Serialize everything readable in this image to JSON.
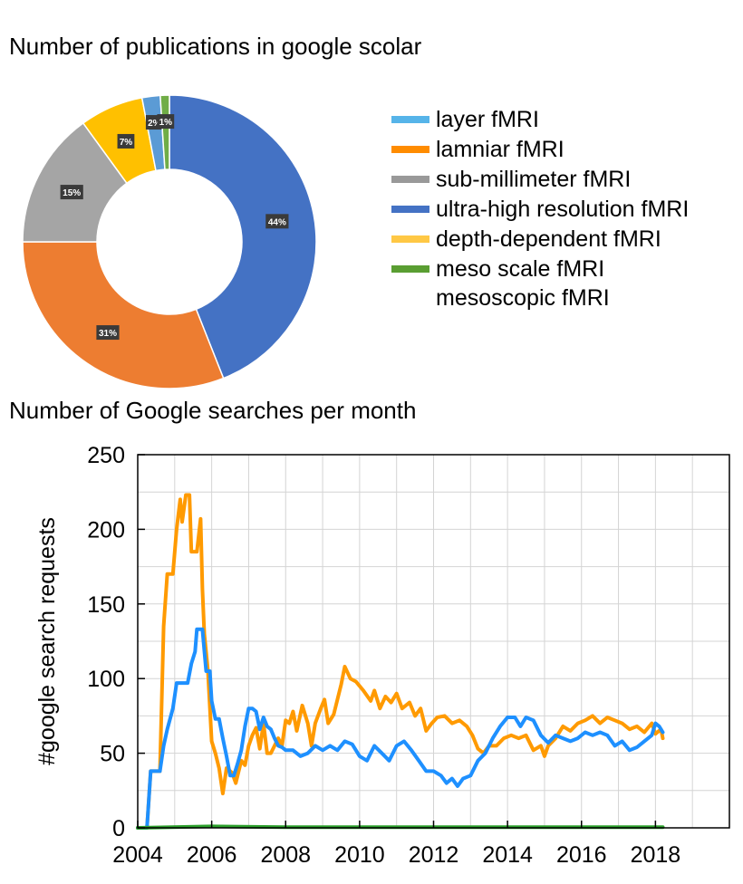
{
  "chart_data": [
    {
      "type": "pie",
      "title": "Number of publications in google scolar",
      "donut": true,
      "slices": [
        {
          "label": "ultra-high resolution fMRI",
          "value": 44,
          "text": "44%",
          "color": "#4472c4"
        },
        {
          "label": "lamniar fMRI",
          "value": 31,
          "text": "31%",
          "color": "#ed7d31"
        },
        {
          "label": "sub-millimeter fMRI",
          "value": 15,
          "text": "15%",
          "color": "#a5a5a5"
        },
        {
          "label": "depth-dependent fMRI",
          "value": 7,
          "text": "7%",
          "color": "#ffc000"
        },
        {
          "label": "layer fMRI",
          "value": 2,
          "text": "2%",
          "color": "#5b9bd5"
        },
        {
          "label": "meso scale fMRI",
          "value": 1,
          "text": "1%",
          "color": "#70ad47"
        }
      ],
      "legend": {
        "placement": "right",
        "entries": [
          {
            "label": "layer fMRI",
            "color": "#56b4e9"
          },
          {
            "label": "lamniar fMRI",
            "color": "#ff8c00"
          },
          {
            "label": "sub-millimeter fMRI",
            "color": "#999999"
          },
          {
            "label": "ultra-high resolution fMRI",
            "color": "#4472c4"
          },
          {
            "label": "depth-dependent fMRI",
            "color": "#ffc845"
          },
          {
            "label": "meso scale fMRI\nmesoscopic fMRI",
            "color": "#5a9e32"
          }
        ]
      }
    },
    {
      "type": "line",
      "title": "Number of Google searches per month",
      "xlabel": "",
      "ylabel": "#google search requests",
      "xlim": [
        2004,
        2020
      ],
      "ylim": [
        0,
        250
      ],
      "xticks": [
        2004,
        2006,
        2008,
        2010,
        2012,
        2014,
        2016,
        2018
      ],
      "yticks": [
        0,
        50,
        100,
        150,
        200,
        250
      ],
      "grid": true,
      "series": [
        {
          "color": "#ff9a00",
          "values": [
            [
              2004.0,
              0
            ],
            [
              2004.25,
              0
            ],
            [
              2004.35,
              38
            ],
            [
              2004.5,
              38
            ],
            [
              2004.6,
              38
            ],
            [
              2004.7,
              135
            ],
            [
              2004.8,
              170
            ],
            [
              2004.95,
              170
            ],
            [
              2005.05,
              200
            ],
            [
              2005.15,
              220
            ],
            [
              2005.2,
              205
            ],
            [
              2005.3,
              223
            ],
            [
              2005.4,
              223
            ],
            [
              2005.45,
              185
            ],
            [
              2005.6,
              185
            ],
            [
              2005.7,
              207
            ],
            [
              2005.75,
              160
            ],
            [
              2005.8,
              130
            ],
            [
              2005.9,
              105
            ],
            [
              2006.0,
              58
            ],
            [
              2006.1,
              50
            ],
            [
              2006.2,
              40
            ],
            [
              2006.3,
              23
            ],
            [
              2006.4,
              40
            ],
            [
              2006.55,
              37
            ],
            [
              2006.65,
              30
            ],
            [
              2006.8,
              45
            ],
            [
              2006.9,
              42
            ],
            [
              2007.0,
              55
            ],
            [
              2007.1,
              62
            ],
            [
              2007.2,
              67
            ],
            [
              2007.3,
              53
            ],
            [
              2007.4,
              70
            ],
            [
              2007.5,
              50
            ],
            [
              2007.6,
              50
            ],
            [
              2007.7,
              55
            ],
            [
              2007.8,
              60
            ],
            [
              2007.9,
              55
            ],
            [
              2008.0,
              72
            ],
            [
              2008.1,
              70
            ],
            [
              2008.2,
              78
            ],
            [
              2008.3,
              65
            ],
            [
              2008.45,
              82
            ],
            [
              2008.6,
              70
            ],
            [
              2008.7,
              55
            ],
            [
              2008.8,
              70
            ],
            [
              2008.95,
              80
            ],
            [
              2009.05,
              86
            ],
            [
              2009.15,
              70
            ],
            [
              2009.3,
              76
            ],
            [
              2009.5,
              96
            ],
            [
              2009.6,
              108
            ],
            [
              2009.75,
              100
            ],
            [
              2009.9,
              98
            ],
            [
              2010.1,
              92
            ],
            [
              2010.3,
              85
            ],
            [
              2010.4,
              92
            ],
            [
              2010.55,
              80
            ],
            [
              2010.7,
              88
            ],
            [
              2010.85,
              84
            ],
            [
              2011.0,
              90
            ],
            [
              2011.15,
              80
            ],
            [
              2011.35,
              84
            ],
            [
              2011.5,
              75
            ],
            [
              2011.65,
              80
            ],
            [
              2011.8,
              65
            ],
            [
              2011.95,
              70
            ],
            [
              2012.1,
              74
            ],
            [
              2012.3,
              75
            ],
            [
              2012.5,
              70
            ],
            [
              2012.7,
              72
            ],
            [
              2012.9,
              68
            ],
            [
              2013.05,
              62
            ],
            [
              2013.2,
              53
            ],
            [
              2013.35,
              50
            ],
            [
              2013.5,
              55
            ],
            [
              2013.7,
              55
            ],
            [
              2013.9,
              60
            ],
            [
              2014.1,
              62
            ],
            [
              2014.3,
              60
            ],
            [
              2014.5,
              62
            ],
            [
              2014.7,
              52
            ],
            [
              2014.9,
              55
            ],
            [
              2015.0,
              48
            ],
            [
              2015.1,
              55
            ],
            [
              2015.3,
              60
            ],
            [
              2015.5,
              68
            ],
            [
              2015.7,
              65
            ],
            [
              2015.9,
              70
            ],
            [
              2016.1,
              72
            ],
            [
              2016.3,
              75
            ],
            [
              2016.5,
              70
            ],
            [
              2016.7,
              74
            ],
            [
              2016.9,
              72
            ],
            [
              2017.1,
              70
            ],
            [
              2017.3,
              66
            ],
            [
              2017.5,
              68
            ],
            [
              2017.7,
              64
            ],
            [
              2017.9,
              70
            ],
            [
              2018.0,
              63
            ],
            [
              2018.15,
              66
            ],
            [
              2018.2,
              60
            ]
          ]
        },
        {
          "color": "#1e90ff",
          "values": [
            [
              2004.0,
              0
            ],
            [
              2004.25,
              0
            ],
            [
              2004.35,
              38
            ],
            [
              2004.5,
              38
            ],
            [
              2004.6,
              38
            ],
            [
              2004.7,
              55
            ],
            [
              2004.8,
              66
            ],
            [
              2004.95,
              80
            ],
            [
              2005.05,
              97
            ],
            [
              2005.2,
              97
            ],
            [
              2005.35,
              97
            ],
            [
              2005.45,
              110
            ],
            [
              2005.55,
              118
            ],
            [
              2005.6,
              133
            ],
            [
              2005.7,
              133
            ],
            [
              2005.75,
              133
            ],
            [
              2005.85,
              105
            ],
            [
              2005.95,
              105
            ],
            [
              2006.0,
              85
            ],
            [
              2006.1,
              73
            ],
            [
              2006.2,
              73
            ],
            [
              2006.3,
              60
            ],
            [
              2006.4,
              48
            ],
            [
              2006.5,
              35
            ],
            [
              2006.6,
              35
            ],
            [
              2006.7,
              43
            ],
            [
              2006.8,
              52
            ],
            [
              2006.9,
              68
            ],
            [
              2007.0,
              80
            ],
            [
              2007.1,
              80
            ],
            [
              2007.2,
              78
            ],
            [
              2007.3,
              66
            ],
            [
              2007.4,
              74
            ],
            [
              2007.5,
              68
            ],
            [
              2007.6,
              66
            ],
            [
              2007.7,
              60
            ],
            [
              2007.8,
              55
            ],
            [
              2007.9,
              54
            ],
            [
              2008.0,
              52
            ],
            [
              2008.2,
              52
            ],
            [
              2008.4,
              48
            ],
            [
              2008.6,
              50
            ],
            [
              2008.8,
              55
            ],
            [
              2009.0,
              52
            ],
            [
              2009.2,
              55
            ],
            [
              2009.4,
              52
            ],
            [
              2009.6,
              58
            ],
            [
              2009.8,
              56
            ],
            [
              2010.0,
              48
            ],
            [
              2010.2,
              45
            ],
            [
              2010.4,
              55
            ],
            [
              2010.6,
              50
            ],
            [
              2010.8,
              45
            ],
            [
              2011.0,
              55
            ],
            [
              2011.2,
              58
            ],
            [
              2011.4,
              52
            ],
            [
              2011.6,
              45
            ],
            [
              2011.8,
              38
            ],
            [
              2012.0,
              38
            ],
            [
              2012.2,
              35
            ],
            [
              2012.35,
              30
            ],
            [
              2012.5,
              33
            ],
            [
              2012.65,
              28
            ],
            [
              2012.8,
              33
            ],
            [
              2013.0,
              35
            ],
            [
              2013.2,
              45
            ],
            [
              2013.4,
              50
            ],
            [
              2013.6,
              60
            ],
            [
              2013.8,
              68
            ],
            [
              2014.0,
              74
            ],
            [
              2014.2,
              74
            ],
            [
              2014.35,
              68
            ],
            [
              2014.5,
              74
            ],
            [
              2014.7,
              72
            ],
            [
              2014.9,
              62
            ],
            [
              2015.1,
              57
            ],
            [
              2015.3,
              62
            ],
            [
              2015.5,
              60
            ],
            [
              2015.7,
              58
            ],
            [
              2015.9,
              60
            ],
            [
              2016.1,
              64
            ],
            [
              2016.3,
              62
            ],
            [
              2016.5,
              64
            ],
            [
              2016.7,
              62
            ],
            [
              2016.9,
              55
            ],
            [
              2017.1,
              58
            ],
            [
              2017.3,
              52
            ],
            [
              2017.5,
              54
            ],
            [
              2017.7,
              58
            ],
            [
              2017.9,
              62
            ],
            [
              2018.0,
              70
            ],
            [
              2018.1,
              68
            ],
            [
              2018.2,
              64
            ]
          ]
        },
        {
          "color": "#2ca02c",
          "values": [
            [
              2004.0,
              0
            ],
            [
              2006.0,
              1
            ],
            [
              2008.0,
              0.5
            ],
            [
              2010.0,
              0.5
            ],
            [
              2012.0,
              0.5
            ],
            [
              2014.0,
              0.5
            ],
            [
              2016.0,
              0.5
            ],
            [
              2018.2,
              0.5
            ]
          ]
        }
      ]
    }
  ]
}
